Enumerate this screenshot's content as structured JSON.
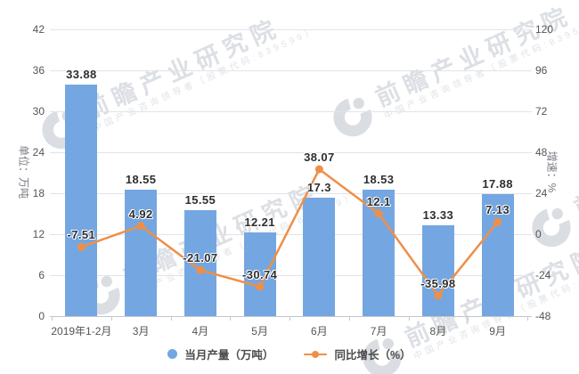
{
  "watermark": {
    "brand": "前瞻产业研究院",
    "subtitle": "中国产业咨询领导者（股票代码:839599）",
    "logo": "qianzhan-swoosh-logo"
  },
  "chart_data": {
    "type": "bar+line",
    "categories": [
      "2019年1-2月",
      "3月",
      "4月",
      "5月",
      "6月",
      "7月",
      "8月",
      "9月"
    ],
    "series": [
      {
        "name": "当月产量（万吨）",
        "type": "bar",
        "axis": "left",
        "color": "#74a7e1",
        "values": [
          33.88,
          18.55,
          15.55,
          12.21,
          17.3,
          18.53,
          13.33,
          17.88
        ]
      },
      {
        "name": "同比增长（%）",
        "type": "line",
        "axis": "right",
        "color": "#ef8f47",
        "values": [
          -7.51,
          4.92,
          -21.07,
          -30.74,
          38.07,
          12.1,
          -35.98,
          7.13
        ]
      }
    ],
    "left_axis": {
      "title": "单位：万吨",
      "min": 0,
      "max": 42,
      "step": 6,
      "ticks": [
        "42",
        "36",
        "30",
        "24",
        "18",
        "12",
        "6",
        "0"
      ]
    },
    "right_axis": {
      "title": "增速：%",
      "min": -48,
      "max": 120,
      "step": 24,
      "ticks": [
        "120",
        "96",
        "72",
        "48",
        "24",
        "0",
        "-24",
        "-48"
      ]
    },
    "grid": "horizontal",
    "legend_position": "bottom"
  }
}
